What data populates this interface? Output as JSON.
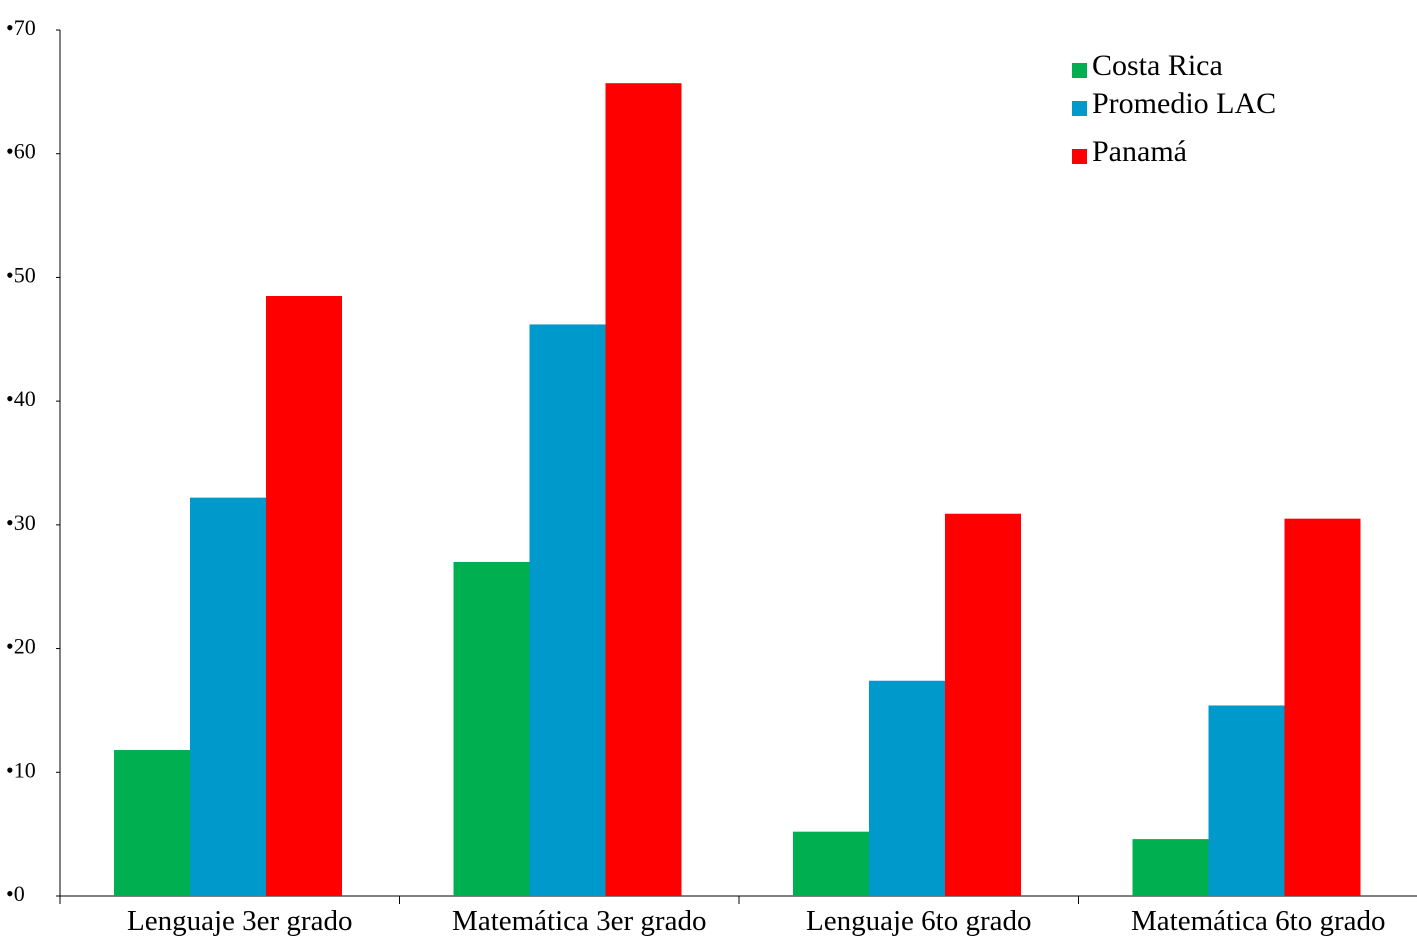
{
  "chart_data": {
    "type": "bar",
    "categories": [
      "Lenguaje 3er grado",
      "Matemática 3er grado",
      "Lenguaje 6to grado",
      "Matemática 6to grado"
    ],
    "series": [
      {
        "name": "Costa Rica",
        "color": "#00b050",
        "values": [
          11.8,
          27.0,
          5.2,
          4.6
        ]
      },
      {
        "name": "Promedio LAC",
        "color": "#0099cc",
        "values": [
          32.2,
          46.2,
          17.4,
          15.4
        ]
      },
      {
        "name": "Panamá",
        "color": "#ff0000",
        "values": [
          48.5,
          65.7,
          30.9,
          30.5
        ]
      }
    ],
    "y_ticks": [
      "•0",
      "•10",
      "•20",
      "•30",
      "•40",
      "•50",
      "•60",
      "•70"
    ],
    "ylim": [
      0,
      70
    ],
    "legend_position": "top-right",
    "grid": false
  }
}
